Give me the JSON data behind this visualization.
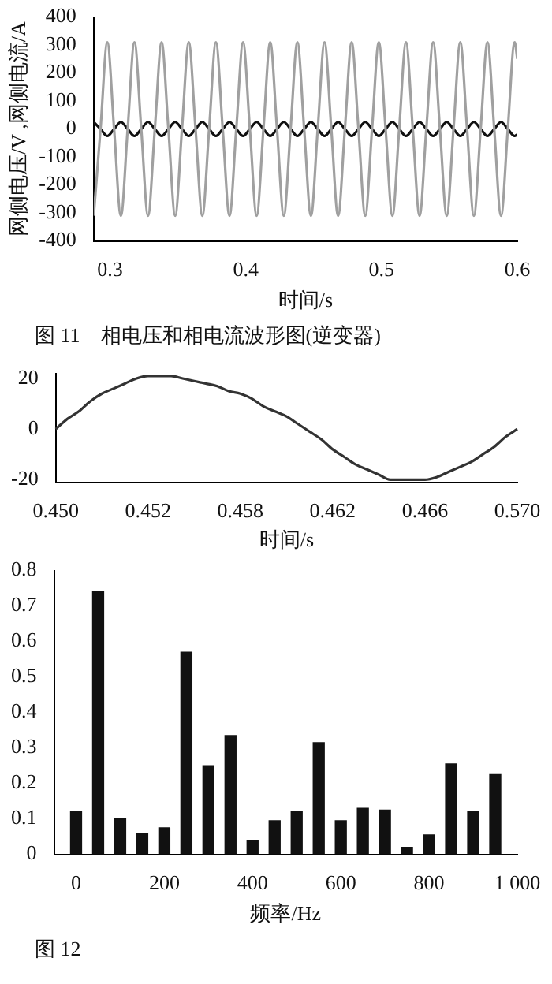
{
  "chart_data": [
    {
      "type": "line",
      "xlabel": "时间/s",
      "ylabel": "网侧电压/V ,网侧电流/A",
      "annotations": [
        "图 11　相电压和相电流波形图(逆变器)"
      ],
      "x": [
        0.288,
        0.293,
        0.298,
        0.303,
        0.308,
        0.313,
        0.318,
        0.323,
        0.328,
        0.333,
        0.338,
        0.343,
        0.348,
        0.353,
        0.358,
        0.363,
        0.368,
        0.373,
        0.378,
        0.383,
        0.388,
        0.393,
        0.398,
        0.403,
        0.408,
        0.413,
        0.418,
        0.423,
        0.428,
        0.433,
        0.438,
        0.443,
        0.448,
        0.453,
        0.458,
        0.463,
        0.468,
        0.473,
        0.478,
        0.483,
        0.488,
        0.493,
        0.498,
        0.503,
        0.508,
        0.513,
        0.518,
        0.523,
        0.528,
        0.533,
        0.538,
        0.543,
        0.548,
        0.553,
        0.558,
        0.563,
        0.568,
        0.573,
        0.578,
        0.583,
        0.588,
        0.593,
        0.598,
        0.6
      ],
      "series": [
        {
          "color": "#a0a0a0",
          "values": [
            -310,
            0,
            310,
            0,
            -310,
            0,
            310,
            0,
            -310,
            0,
            310,
            0,
            -310,
            0,
            310,
            0,
            -310,
            0,
            310,
            0,
            -310,
            0,
            310,
            0,
            -310,
            0,
            310,
            0,
            -310,
            0,
            310,
            0,
            -310,
            0,
            310,
            0,
            -310,
            0,
            310,
            0,
            -310,
            0,
            310,
            0,
            -310,
            0,
            310,
            0,
            -310,
            0,
            310,
            0,
            -310,
            0,
            310,
            0,
            -310,
            0,
            310,
            0,
            -310,
            0,
            310,
            250
          ]
        },
        {
          "color": "#111111",
          "values": [
            25,
            0,
            -25,
            0,
            25,
            0,
            -25,
            0,
            25,
            0,
            -25,
            0,
            25,
            0,
            -25,
            0,
            25,
            0,
            -25,
            0,
            25,
            0,
            -25,
            0,
            25,
            0,
            -25,
            0,
            25,
            0,
            -25,
            0,
            25,
            0,
            -25,
            0,
            25,
            0,
            -25,
            0,
            25,
            0,
            -25,
            0,
            25,
            0,
            -25,
            0,
            25,
            0,
            -25,
            0,
            25,
            0,
            -25,
            0,
            25,
            0,
            -25,
            0,
            25,
            0,
            -25,
            -20
          ]
        }
      ],
      "xlim": [
        0.288,
        0.6
      ],
      "xticks": [
        0.3,
        0.4,
        0.5,
        0.6
      ],
      "ylim": [
        -400,
        400
      ],
      "yticks": [
        -400,
        -300,
        -200,
        -100,
        0,
        100,
        200,
        300,
        400
      ]
    },
    {
      "type": "line",
      "xlabel": "时间/s",
      "categories": [
        "0.450",
        null,
        null,
        null,
        null,
        null,
        null,
        null,
        "0.452",
        null,
        null,
        null,
        null,
        null,
        null,
        null,
        "0.458",
        null,
        null,
        null,
        null,
        null,
        null,
        null,
        "0.462",
        null,
        null,
        null,
        null,
        null,
        null,
        null,
        "0.466",
        null,
        null,
        null,
        null,
        null,
        null,
        null,
        "0.570"
      ],
      "series": [
        {
          "color": "#333333",
          "values": [
            0,
            4,
            7,
            11,
            14,
            16,
            18,
            20,
            21,
            21,
            21,
            20,
            19,
            18,
            17,
            15,
            14,
            12,
            9,
            7,
            5,
            2,
            -1,
            -4,
            -8,
            -11,
            -14,
            -16,
            -18,
            -20,
            -20,
            -20,
            -20,
            -19,
            -17,
            -15,
            -13,
            -10,
            -7,
            -3,
            0
          ]
        }
      ],
      "ylim": [
        -21,
        22
      ],
      "yticks": [
        -20,
        0,
        20
      ]
    },
    {
      "type": "bar",
      "xlabel": "频率/Hz",
      "annotations": [
        "图 12"
      ],
      "x": [
        0,
        50,
        100,
        150,
        200,
        250,
        300,
        350,
        400,
        450,
        500,
        550,
        600,
        650,
        700,
        750,
        800,
        850,
        900,
        950
      ],
      "values": [
        0.12,
        0.74,
        0.1,
        0.06,
        0.075,
        0.57,
        0.25,
        0.335,
        0.04,
        0.095,
        0.12,
        0.315,
        0.095,
        0.13,
        0.125,
        0.02,
        0.055,
        0.255,
        0.12,
        0.225
      ],
      "color": "#111111",
      "xlim": [
        -50,
        1000
      ],
      "xticks": [
        0,
        200,
        400,
        600,
        800,
        {
          "value": 1000,
          "label": "1 000"
        }
      ],
      "ylim": [
        0,
        0.8
      ],
      "yticks": [
        0,
        0.1,
        0.2,
        0.3,
        0.4,
        0.5,
        0.6,
        0.7,
        0.8
      ]
    }
  ]
}
